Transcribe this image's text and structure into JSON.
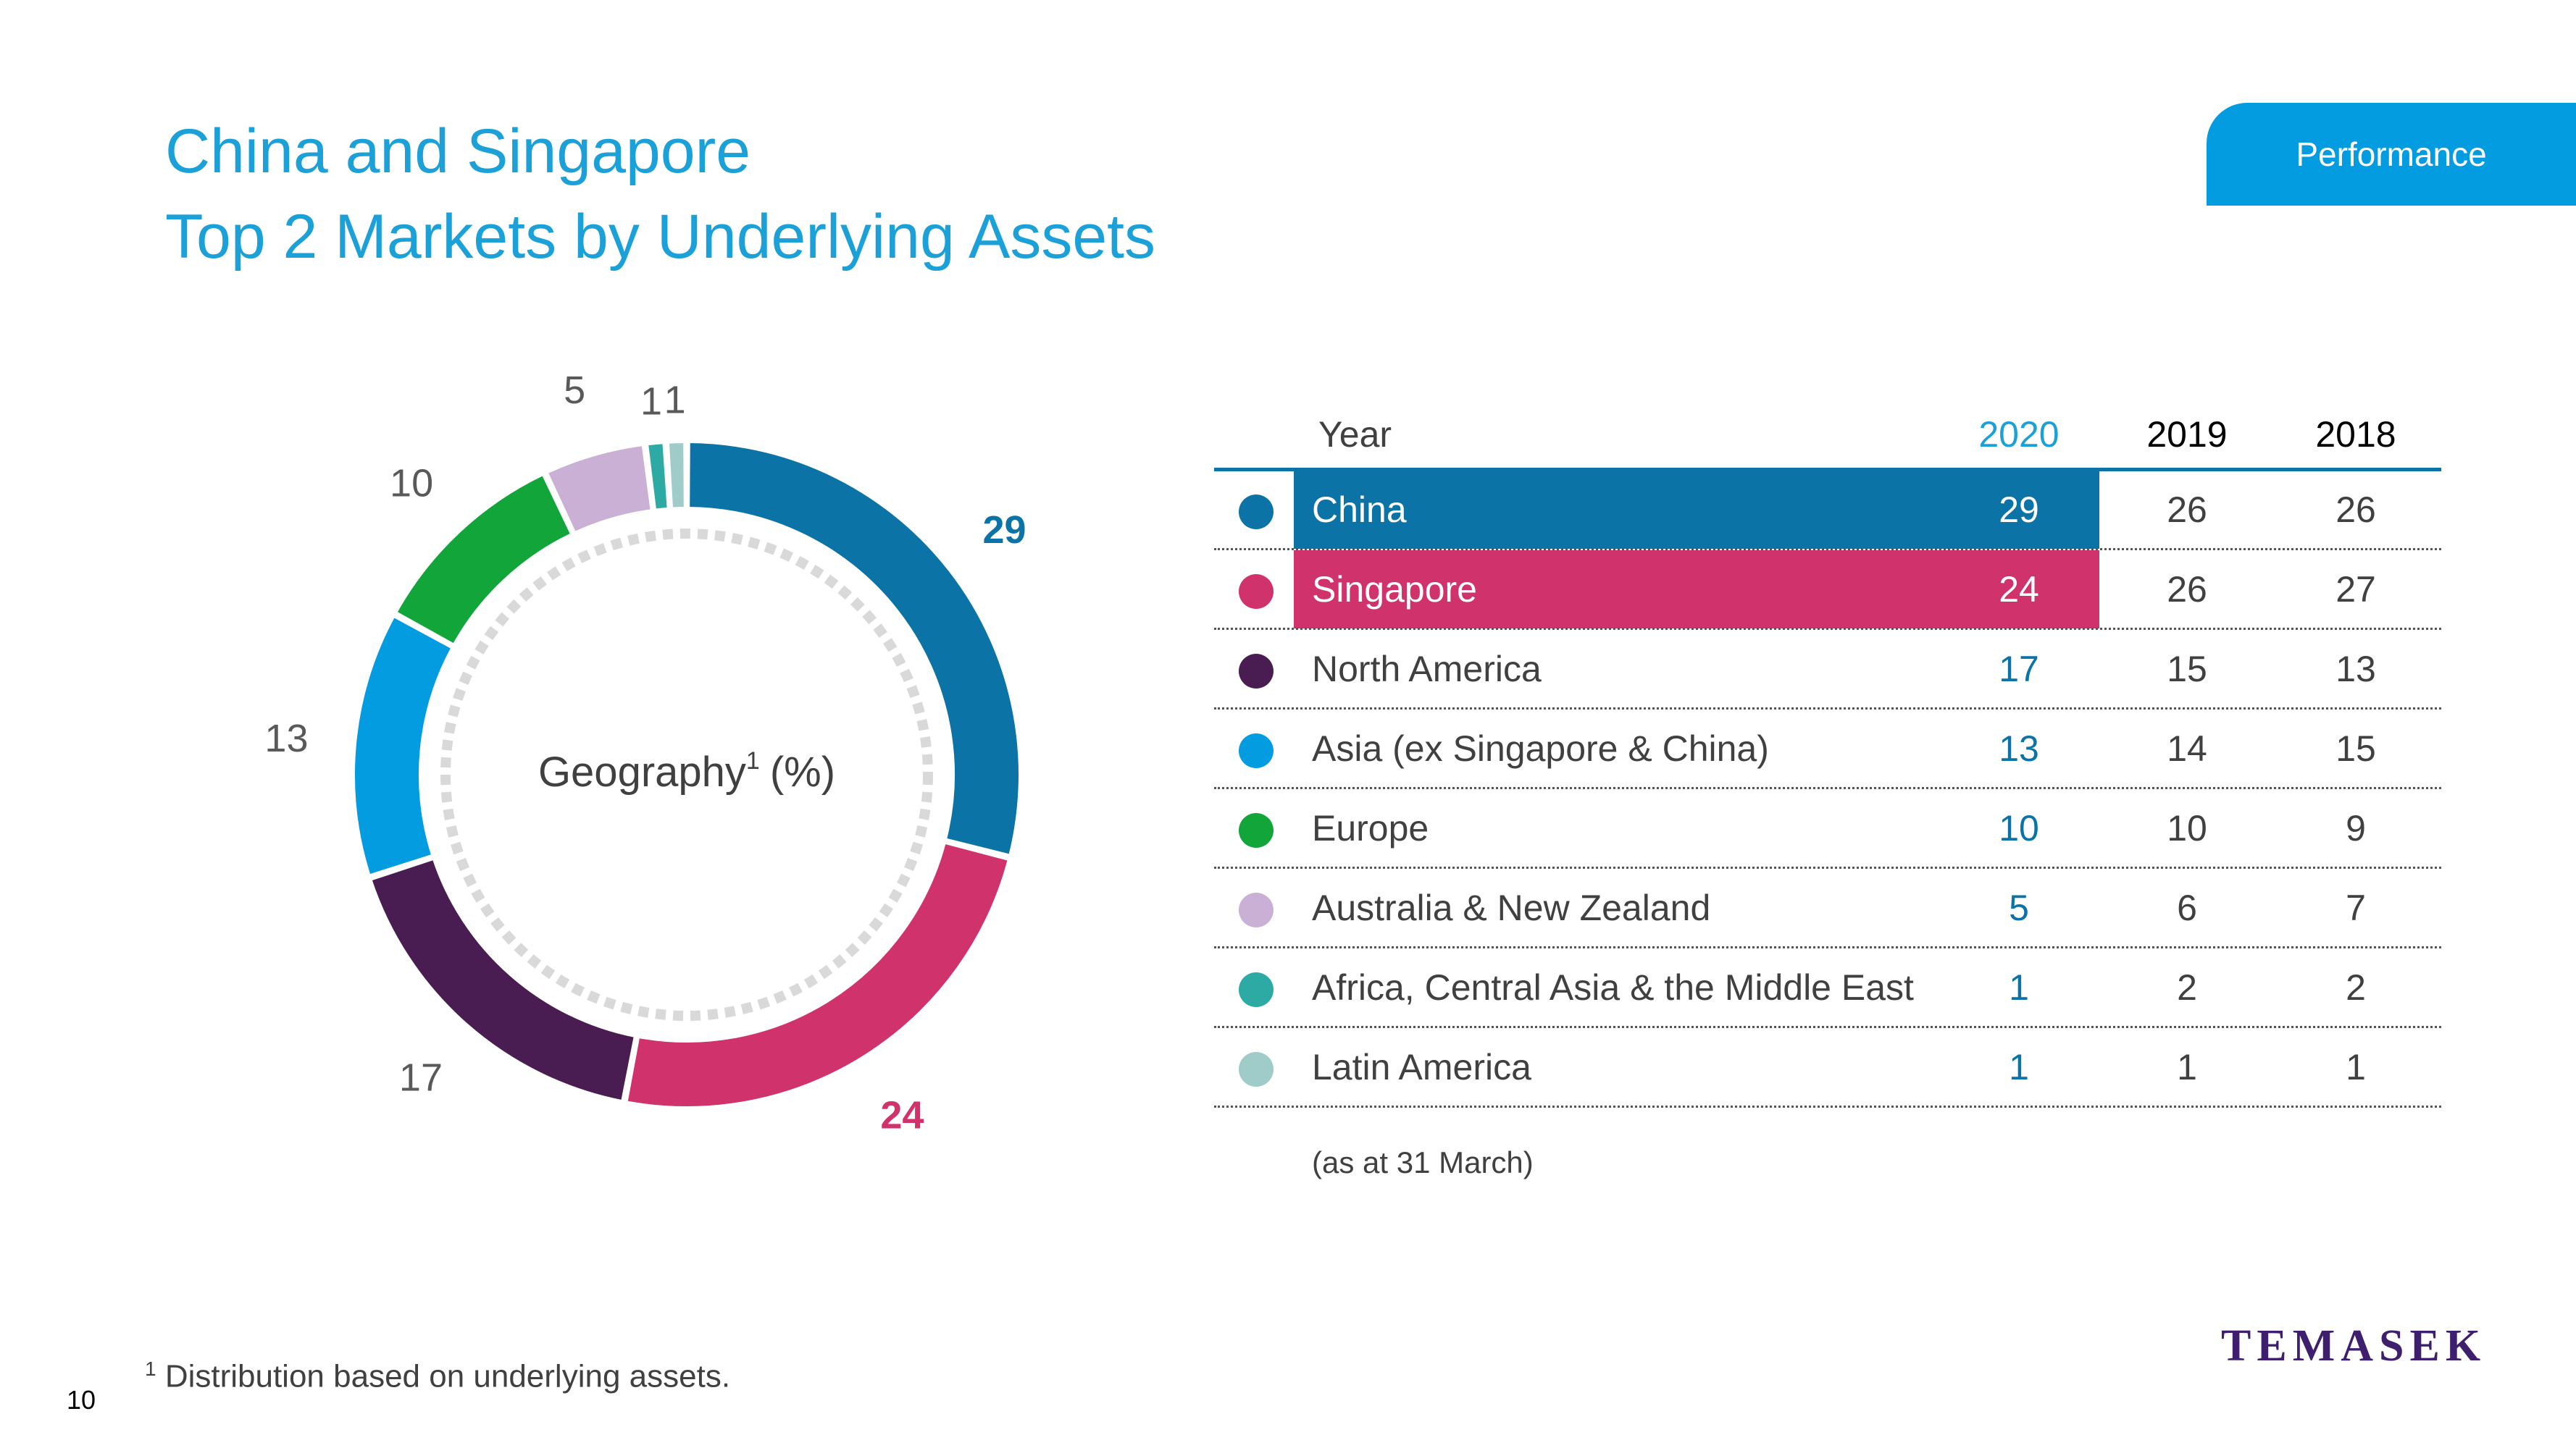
{
  "header": {
    "title_line1": "China and Singapore",
    "title_line2": "Top 2 Markets by Underlying Assets",
    "section_tag": "Performance"
  },
  "chart_data": {
    "type": "pie",
    "center_label": "Geography",
    "center_label_sup": "1",
    "center_label_unit": "(%)",
    "categories": [
      "China",
      "Singapore",
      "North America",
      "Asia (ex Singapore & China)",
      "Europe",
      "Australia & New Zealand",
      "Africa, Central Asia & the Middle East",
      "Latin America"
    ],
    "values": [
      29,
      24,
      17,
      13,
      10,
      5,
      1,
      1
    ],
    "colors": [
      "#0b73a6",
      "#d0336c",
      "#4a1d52",
      "#039ce0",
      "#12a63a",
      "#c9b0d4",
      "#2daaa4",
      "#9fcbc8"
    ],
    "data_labels": [
      "29",
      "24",
      "17",
      "13",
      "10",
      "5",
      "1",
      "1"
    ],
    "emphasis_label_colors": [
      "#0b73a6",
      "#d0336c"
    ],
    "inner_ring_color": "#d9d9d9"
  },
  "table": {
    "col_year": "Year",
    "col_2020": "2020",
    "col_2019": "2019",
    "col_2018": "2018",
    "rows": [
      {
        "label": "China",
        "v2020": "29",
        "v2019": "26",
        "v2018": "26"
      },
      {
        "label": "Singapore",
        "v2020": "24",
        "v2019": "26",
        "v2018": "27"
      },
      {
        "label": "North America",
        "v2020": "17",
        "v2019": "15",
        "v2018": "13"
      },
      {
        "label": "Asia (ex Singapore & China)",
        "v2020": "13",
        "v2019": "14",
        "v2018": "15"
      },
      {
        "label": "Europe",
        "v2020": "10",
        "v2019": "10",
        "v2018": "9"
      },
      {
        "label": "Australia & New Zealand",
        "v2020": "5",
        "v2019": "6",
        "v2018": "7"
      },
      {
        "label": "Africa, Central Asia & the Middle East",
        "v2020": "1",
        "v2019": "2",
        "v2018": "2"
      },
      {
        "label": "Latin America",
        "v2020": "1",
        "v2019": "1",
        "v2018": "1"
      }
    ],
    "note": "(as at 31 March)"
  },
  "footer": {
    "footnote_sup": "1",
    "footnote_text": "Distribution based on underlying assets.",
    "page_number": "10",
    "logo": "TEMASEK"
  }
}
